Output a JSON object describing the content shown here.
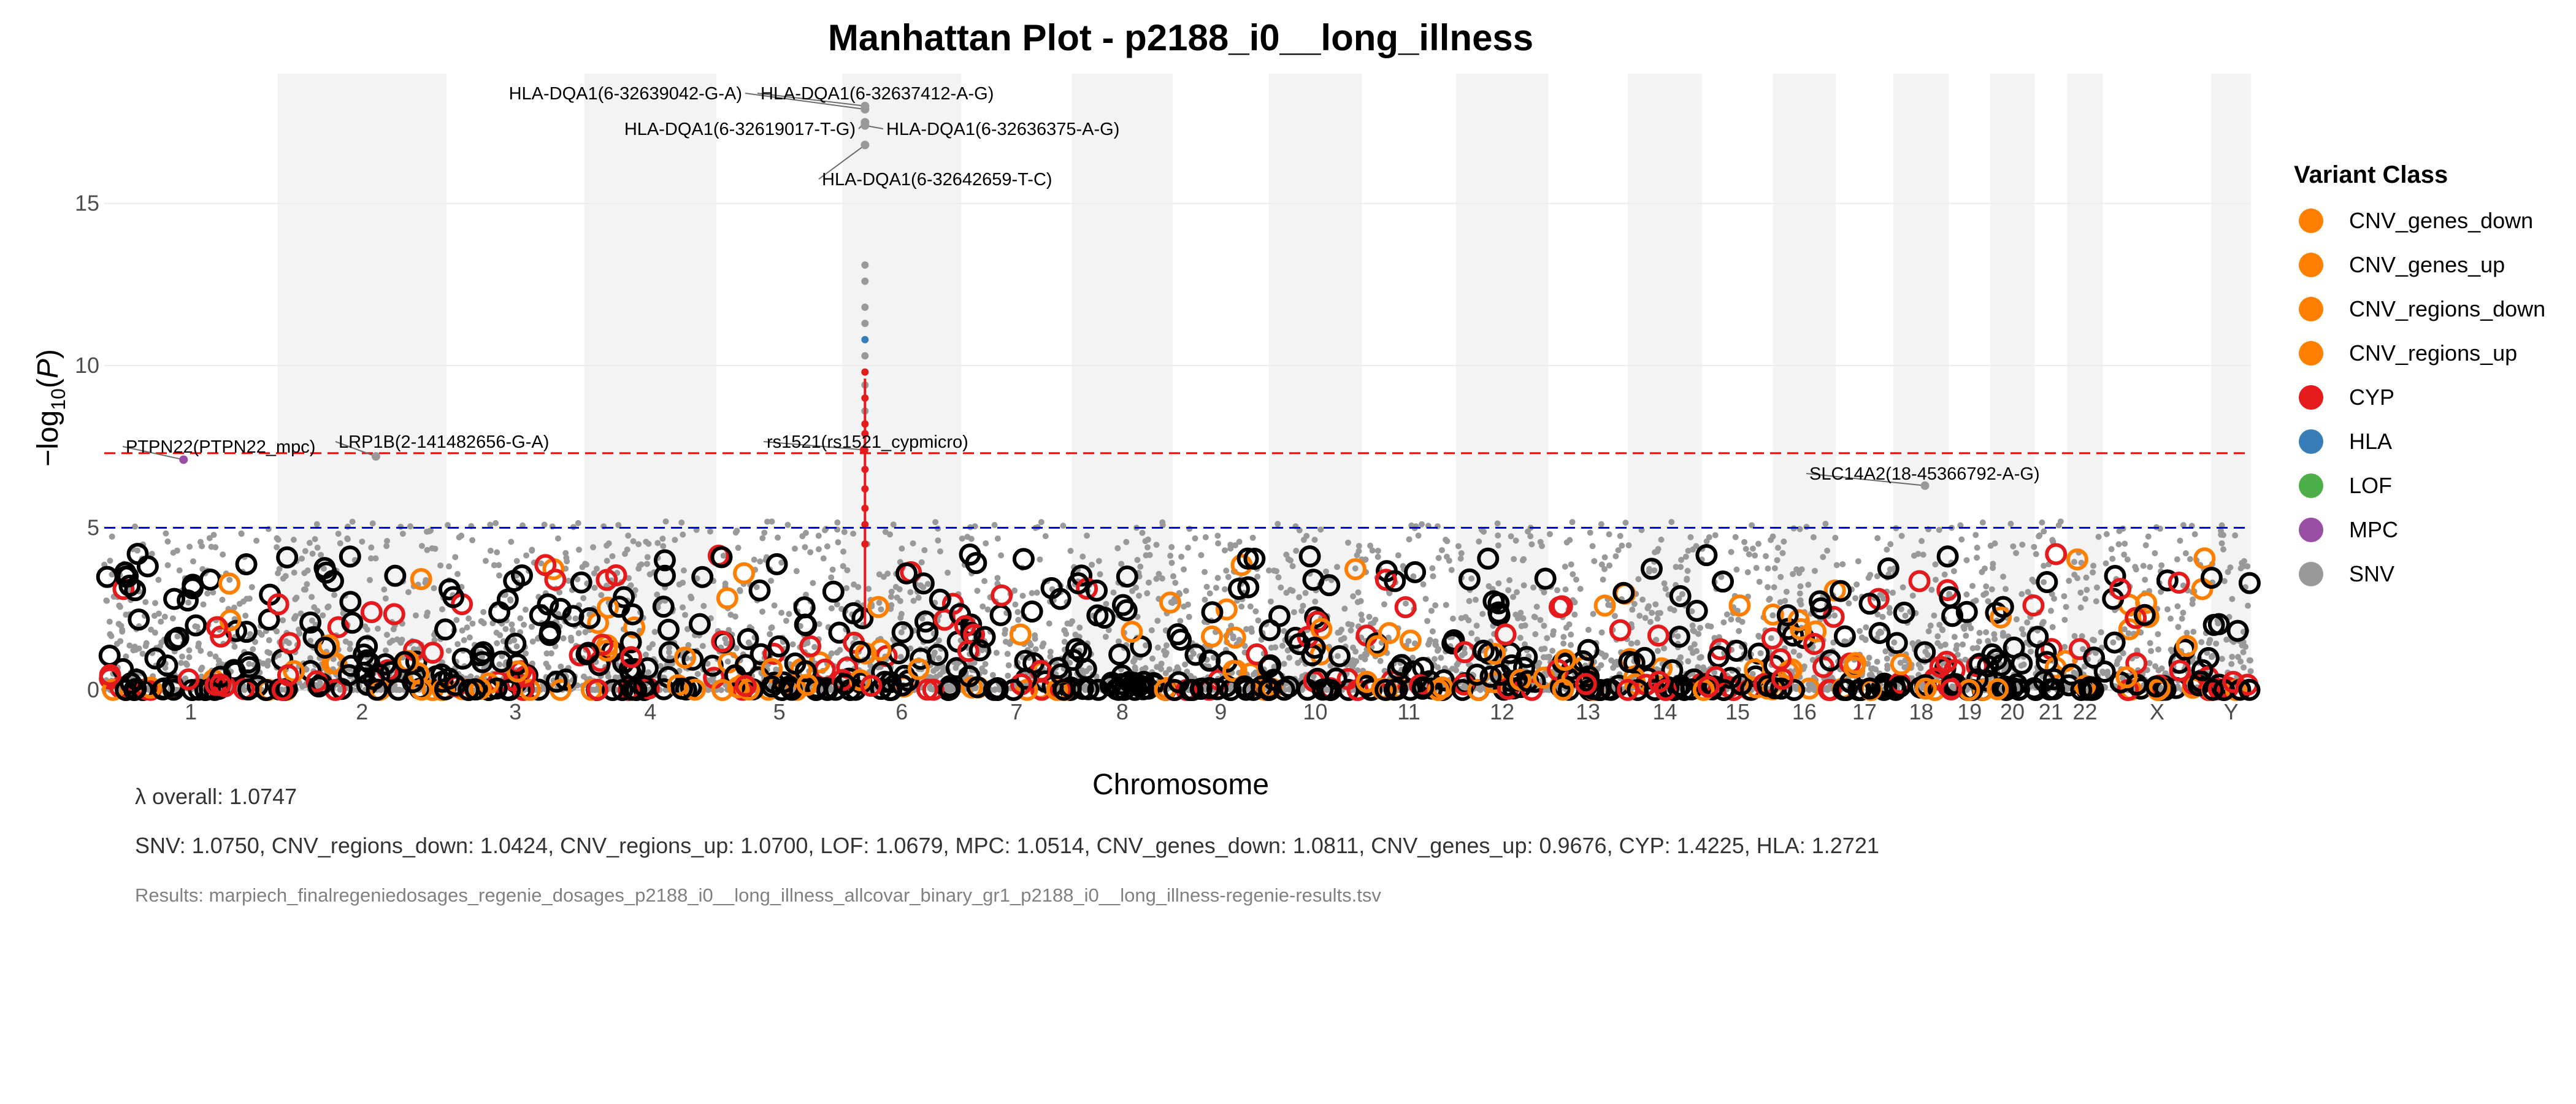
{
  "chart_data": {
    "type": "scatter",
    "title": "Manhattan Plot - p2188_i0__long_illness",
    "xlabel": "Chromosome",
    "ylabel_main": "−log",
    "ylabel_sub": "10",
    "ylabel_var": "P",
    "ylim": [
      0,
      19
    ],
    "yticks": [
      0,
      5,
      10,
      15
    ],
    "grid": true,
    "legend_position": "right",
    "thresholds": [
      {
        "name": "genome-wide",
        "y": 7.3,
        "color": "#ff0000"
      },
      {
        "name": "suggestive",
        "y": 5,
        "color": "#0000ff"
      }
    ],
    "chromosomes": [
      {
        "label": "1",
        "length": 249
      },
      {
        "label": "2",
        "length": 243
      },
      {
        "label": "3",
        "length": 198
      },
      {
        "label": "4",
        "length": 190
      },
      {
        "label": "5",
        "length": 181
      },
      {
        "label": "6",
        "length": 171
      },
      {
        "label": "7",
        "length": 159
      },
      {
        "label": "8",
        "length": 145
      },
      {
        "label": "9",
        "length": 138
      },
      {
        "label": "10",
        "length": 134
      },
      {
        "label": "11",
        "length": 135
      },
      {
        "label": "12",
        "length": 133
      },
      {
        "label": "13",
        "length": 114
      },
      {
        "label": "14",
        "length": 107
      },
      {
        "label": "15",
        "length": 102
      },
      {
        "label": "16",
        "length": 90
      },
      {
        "label": "17",
        "length": 83
      },
      {
        "label": "18",
        "length": 80
      },
      {
        "label": "19",
        "length": 59
      },
      {
        "label": "20",
        "length": 64
      },
      {
        "label": "21",
        "length": 47
      },
      {
        "label": "22",
        "length": 51
      },
      {
        "label": "X",
        "length": 156
      },
      {
        "label": "Y",
        "length": 57
      }
    ],
    "legend": {
      "title": "Variant Class",
      "items": [
        {
          "label": "CNV_genes_down",
          "color": "#ff7f00"
        },
        {
          "label": "CNV_genes_up",
          "color": "#ff7f00"
        },
        {
          "label": "CNV_regions_down",
          "color": "#ff7f00"
        },
        {
          "label": "CNV_regions_up",
          "color": "#ff7f00"
        },
        {
          "label": "CYP",
          "color": "#e41a1c"
        },
        {
          "label": "HLA",
          "color": "#377eb8"
        },
        {
          "label": "LOF",
          "color": "#4daf4a"
        },
        {
          "label": "MPC",
          "color": "#984ea3"
        },
        {
          "label": "SNV",
          "color": "#999999"
        }
      ]
    },
    "top_hits": [
      {
        "label": "HLA-DQA1(6-32639042-G-A)",
        "chr": "6",
        "pos": 32.64,
        "y": 17.9,
        "class": "SNV"
      },
      {
        "label": "HLA-DQA1(6-32637412-A-G)",
        "chr": "6",
        "pos": 32.64,
        "y": 18.0,
        "class": "SNV"
      },
      {
        "label": "HLA-DQA1(6-32619017-T-G)",
        "chr": "6",
        "pos": 32.62,
        "y": 17.5,
        "class": "SNV"
      },
      {
        "label": "HLA-DQA1(6-32636375-A-G)",
        "chr": "6",
        "pos": 32.64,
        "y": 17.4,
        "class": "SNV"
      },
      {
        "label": "HLA-DQA1(6-32642659-T-C)",
        "chr": "6",
        "pos": 32.64,
        "y": 16.8,
        "class": "SNV"
      },
      {
        "label": "PTPN22(PTPN22_mpc)",
        "chr": "1",
        "pos": 114.0,
        "y": 7.1,
        "class": "MPC"
      },
      {
        "label": "LRP1B(2-141482656-G-A)",
        "chr": "2",
        "pos": 141.5,
        "y": 7.2,
        "class": "SNV"
      },
      {
        "label": "rs1521(rs1521_cypmicro)",
        "chr": "6",
        "pos": 31.3,
        "y": 7.4,
        "class": "CYP"
      },
      {
        "label": "SLC14A2(18-45366792-A-G)",
        "chr": "18",
        "pos": 45.4,
        "y": 6.3,
        "class": "SNV"
      }
    ],
    "hla_column": [
      {
        "y": 13.1,
        "class": "SNV"
      },
      {
        "y": 12.6,
        "class": "SNV"
      },
      {
        "y": 11.8,
        "class": "SNV"
      },
      {
        "y": 11.3,
        "class": "SNV"
      },
      {
        "y": 10.8,
        "class": "HLA"
      },
      {
        "y": 10.3,
        "class": "SNV"
      },
      {
        "y": 9.8,
        "class": "CYP"
      },
      {
        "y": 9.4,
        "class": "SNV"
      },
      {
        "y": 9.0,
        "class": "CYP"
      },
      {
        "y": 8.6,
        "class": "SNV"
      },
      {
        "y": 8.2,
        "class": "CYP"
      },
      {
        "y": 7.9,
        "class": "CYP"
      },
      {
        "y": 6.8,
        "class": "CYP"
      },
      {
        "y": 6.2,
        "class": "CYP"
      },
      {
        "y": 5.6,
        "class": "CYP"
      },
      {
        "y": 5.1,
        "class": "CYP"
      },
      {
        "y": 4.5,
        "class": "CYP"
      }
    ],
    "lambda": {
      "overall": "λ overall: 1.0747",
      "by_class": "SNV: 1.0750, CNV_regions_down: 1.0424, CNV_regions_up: 1.0700, LOF: 1.0679, MPC: 1.0514, CNV_genes_down: 1.0811, CNV_genes_up: 0.9676, CYP: 1.4225, HLA: 1.2721"
    },
    "results_file": "Results: marpiech_finalregeniedosages_regenie_dosages_p2188_i0__long_illness_allcovar_binary_gr1_p2188_i0__long_illness-regenie-results.tsv"
  }
}
